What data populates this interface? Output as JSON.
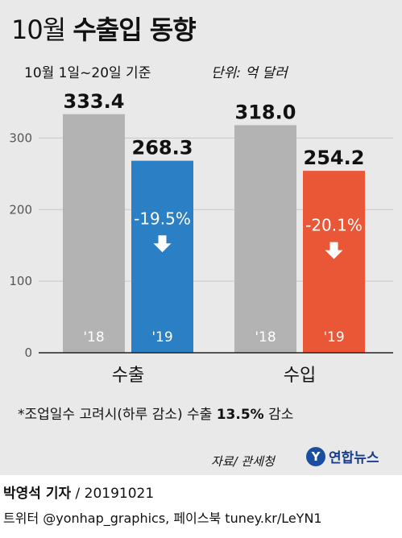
{
  "header": {
    "title_prefix": "10월",
    "title_main": "수출입 동향",
    "subtitle": "10월 1일~20일 기준",
    "unit": "단위: 억 달러"
  },
  "chart_data": {
    "type": "bar",
    "ylim": [
      0,
      350
    ],
    "yticks": [
      "0",
      "100",
      "200",
      "300"
    ],
    "groups": [
      {
        "label": "수출",
        "bars": [
          {
            "year": "'18",
            "value": 333.4,
            "value_label": "333.4",
            "color": "#b3b3b3"
          },
          {
            "year": "'19",
            "value": 268.3,
            "value_label": "268.3",
            "color": "#2a7fc5",
            "change": "-19.5%"
          }
        ]
      },
      {
        "label": "수입",
        "bars": [
          {
            "year": "'18",
            "value": 318.0,
            "value_label": "318.0",
            "color": "#b3b3b3"
          },
          {
            "year": "'19",
            "value": 254.2,
            "value_label": "254.2",
            "color": "#ea5736",
            "change": "-20.1%"
          }
        ]
      }
    ]
  },
  "footnote": {
    "prefix": "*조업일수 고려시(하루 감소) 수출 ",
    "highlight": "13.5%",
    "suffix": " 감소"
  },
  "source": "자료/ 관세청",
  "logo": {
    "mark": "Y",
    "text": "연합뉴스"
  },
  "byline": {
    "author": "박영석 기자",
    "date": " / 20191021"
  },
  "social": "트위터 @yonhap_graphics, 페이스북 tuney.kr/LeYN1"
}
